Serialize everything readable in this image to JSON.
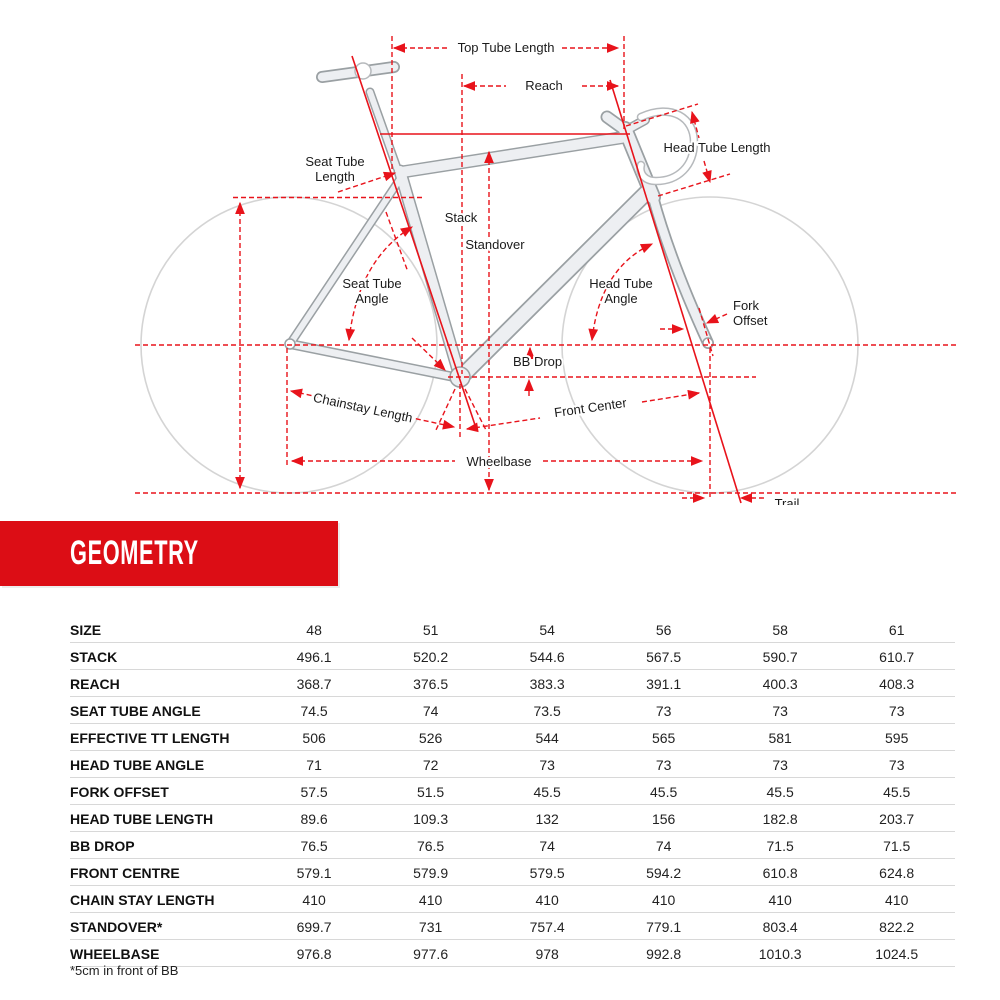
{
  "banner": {
    "title": "GEOMETRY"
  },
  "diagram": {
    "labels": {
      "top_tube_length": "Top Tube Length",
      "reach": "Reach",
      "head_tube_length": "Head Tube Length",
      "seat_tube_length_line1": "Seat Tube",
      "seat_tube_length_line2": "Length",
      "stack": "Stack",
      "standover": "Standover",
      "seat_tube_angle_line1": "Seat Tube",
      "seat_tube_angle_line2": "Angle",
      "head_tube_angle_line1": "Head Tube",
      "head_tube_angle_line2": "Angle",
      "fork_offset_line1": "Fork",
      "fork_offset_line2": "Offset",
      "bb_drop": "BB Drop",
      "chainstay_length": "Chainstay Length",
      "front_center": "Front Center",
      "wheelbase": "Wheelbase",
      "trail": "Trail"
    }
  },
  "table": {
    "header": {
      "label": "SIZE",
      "values": [
        "48",
        "51",
        "54",
        "56",
        "58",
        "61"
      ]
    },
    "rows": [
      {
        "label": "STACK",
        "values": [
          "496.1",
          "520.2",
          "544.6",
          "567.5",
          "590.7",
          "610.7"
        ]
      },
      {
        "label": "REACH",
        "values": [
          "368.7",
          "376.5",
          "383.3",
          "391.1",
          "400.3",
          "408.3"
        ]
      },
      {
        "label": "SEAT TUBE ANGLE",
        "values": [
          "74.5",
          "74",
          "73.5",
          "73",
          "73",
          "73"
        ]
      },
      {
        "label": "EFFECTIVE TT LENGTH",
        "values": [
          "506",
          "526",
          "544",
          "565",
          "581",
          "595"
        ]
      },
      {
        "label": "HEAD TUBE ANGLE",
        "values": [
          "71",
          "72",
          "73",
          "73",
          "73",
          "73"
        ]
      },
      {
        "label": "FORK OFFSET",
        "values": [
          "57.5",
          "51.5",
          "45.5",
          "45.5",
          "45.5",
          "45.5"
        ]
      },
      {
        "label": "HEAD TUBE LENGTH",
        "values": [
          "89.6",
          "109.3",
          "132",
          "156",
          "182.8",
          "203.7"
        ]
      },
      {
        "label": "BB DROP",
        "values": [
          "76.5",
          "76.5",
          "74",
          "74",
          "71.5",
          "71.5"
        ]
      },
      {
        "label": "FRONT CENTRE",
        "values": [
          "579.1",
          "579.9",
          "579.5",
          "594.2",
          "610.8",
          "624.8"
        ]
      },
      {
        "label": "CHAIN STAY LENGTH",
        "values": [
          "410",
          "410",
          "410",
          "410",
          "410",
          "410"
        ]
      },
      {
        "label": "STANDOVER*",
        "values": [
          "699.7",
          "731",
          "757.4",
          "779.1",
          "803.4",
          "822.2"
        ]
      },
      {
        "label": "WHEELBASE",
        "values": [
          "976.8",
          "977.6",
          "978",
          "992.8",
          "1010.3",
          "1024.5"
        ]
      }
    ],
    "footnote": "*5cm in front of BB"
  },
  "colors": {
    "dimension_red": "#e8131b",
    "banner_red": "#dc0d15",
    "frame_fill": "#edeff2",
    "frame_outline": "#9aa0a3",
    "wheel_outline": "#d4d4d4"
  }
}
